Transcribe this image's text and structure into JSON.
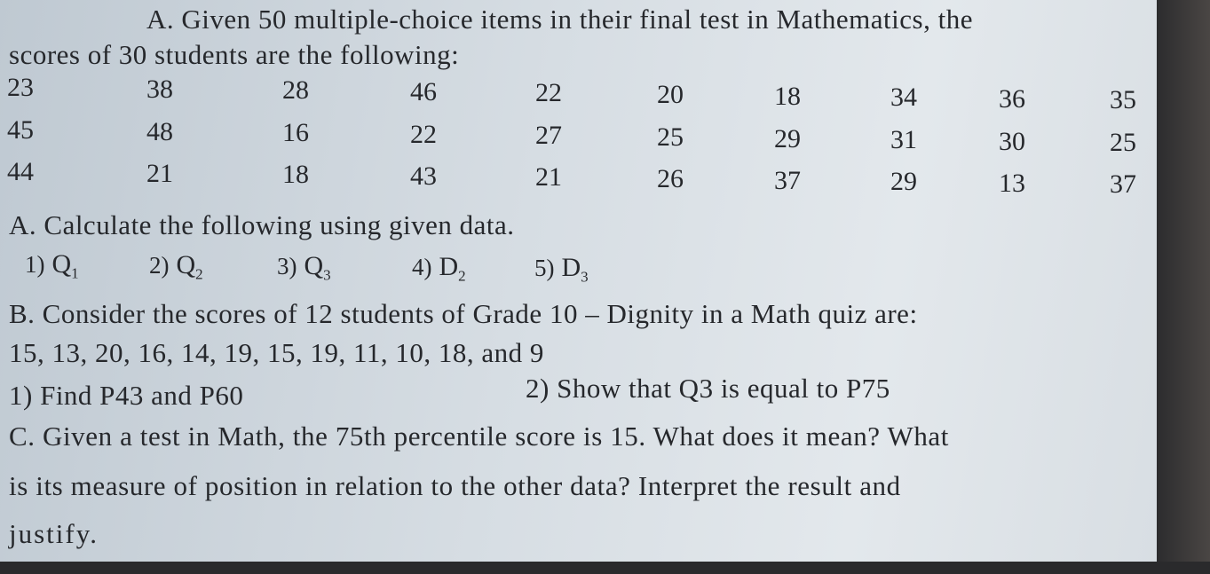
{
  "intro": {
    "lines": [
      "A. Given 50 multiple-choice items in their final test in Mathematics, the",
      "scores of 30 students are the following:"
    ]
  },
  "table": {
    "rows": [
      [
        23,
        38,
        28,
        46,
        22,
        20,
        18,
        34,
        36,
        35
      ],
      [
        45,
        48,
        16,
        22,
        27,
        25,
        29,
        31,
        30,
        25
      ],
      [
        44,
        21,
        18,
        43,
        21,
        26,
        37,
        29,
        13,
        37
      ]
    ]
  },
  "section_a": {
    "title": "A. Calculate the following using given data.",
    "items": [
      {
        "number": "1)",
        "symbol": "Q",
        "sub": "1"
      },
      {
        "number": "2)",
        "symbol": "Q",
        "sub": "2"
      },
      {
        "number": "3)",
        "symbol": "Q",
        "sub": "3"
      },
      {
        "number": "4)",
        "symbol": "D",
        "sub": "2"
      },
      {
        "number": "5)",
        "symbol": "D",
        "sub": "3"
      }
    ]
  },
  "section_b": {
    "title": "B. Consider the scores of 12 students of Grade 10 – Dignity in a Math quiz are:",
    "data": "15, 13, 20, 16, 14, 19, 15, 19, 11, 10, 18, and 9",
    "tasks": [
      "1)  Find P43 and P60",
      "2)  Show that Q3 is equal to P75"
    ]
  },
  "section_c": {
    "lines": [
      "C. Given a test in Math, the 75th percentile score is 15. What does it mean? What",
      "is its measure of position in relation to the other data? Interpret the result and",
      "justify."
    ]
  }
}
